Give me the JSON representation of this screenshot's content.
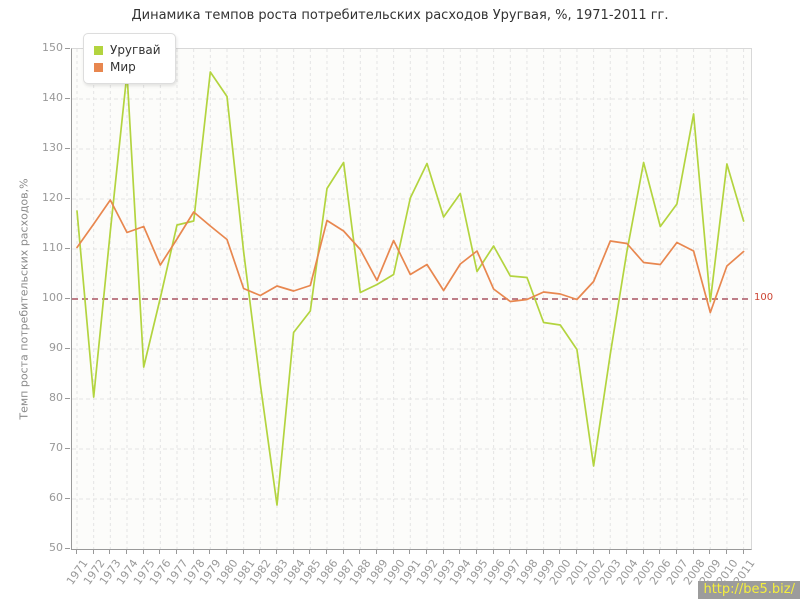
{
  "title": "Динамика темпов роста потребительских расходов Уругвая, %, 1971-2011 гг.",
  "y_axis_title": "Темп роста потребительских расходов,%",
  "reference_label": "100",
  "watermark": "http://be5.biz/",
  "colors": {
    "uruguay_line": "#b3d43f",
    "world_line": "#e8874f",
    "reference_line": "#993344",
    "reference_label": "#cc4433",
    "grid": "#e4e4e4",
    "axis": "#999999",
    "tick_text": "#999999",
    "plot_background": "#fcfcfa",
    "watermark_bg": "#9c9c9c",
    "watermark_text": "#f5ef3d"
  },
  "chart_data": {
    "type": "line",
    "title": "Динамика темпов роста потребительских расходов Уругвая, %, 1971-2011 гг.",
    "xlabel": "",
    "ylabel": "Темп роста потребительских расходов,%",
    "ylim": [
      50,
      150
    ],
    "ytick_step": 10,
    "grid": true,
    "legend_position": "top-left",
    "reference_line": 100,
    "x": [
      1971,
      1972,
      1973,
      1974,
      1975,
      1976,
      1977,
      1978,
      1979,
      1980,
      1981,
      1982,
      1983,
      1984,
      1985,
      1986,
      1987,
      1988,
      1989,
      1990,
      1991,
      1992,
      1993,
      1994,
      1995,
      1996,
      1997,
      1998,
      1999,
      2000,
      2001,
      2002,
      2003,
      2004,
      2005,
      2006,
      2007,
      2008,
      2009,
      2010,
      2011
    ],
    "series": [
      {
        "id": "uruguay",
        "name": "Уругвай",
        "color": "#b3d43f",
        "values": [
          117.6,
          80.4,
          113.5,
          145.2,
          86.4,
          100.2,
          114.8,
          115.6,
          145.4,
          140.5,
          109.5,
          83.0,
          58.8,
          93.3,
          97.6,
          122.1,
          127.3,
          101.3,
          102.9,
          104.9,
          120.2,
          127.1,
          116.4,
          121.1,
          105.5,
          110.6,
          104.6,
          104.3,
          95.3,
          94.8,
          89.9,
          66.6,
          89.0,
          109.5,
          127.3,
          114.5,
          119.0,
          137.0,
          99.5,
          127.0,
          115.6
        ]
      },
      {
        "id": "world",
        "name": "Мир",
        "color": "#e8874f",
        "values": [
          110.3,
          115.0,
          119.8,
          113.3,
          114.5,
          106.8,
          112.0,
          117.4,
          114.6,
          111.9,
          102.1,
          100.7,
          102.6,
          101.6,
          102.7,
          115.7,
          113.6,
          109.9,
          103.7,
          111.7,
          104.9,
          106.9,
          101.7,
          107.0,
          109.6,
          102.0,
          99.5,
          99.9,
          101.4,
          101.0,
          99.9,
          103.5,
          111.6,
          111.1,
          107.3,
          106.9,
          111.3,
          109.6,
          97.3,
          106.6,
          109.5
        ]
      }
    ]
  }
}
